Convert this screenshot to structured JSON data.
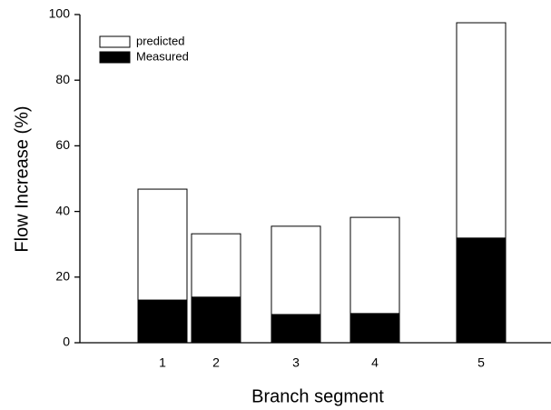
{
  "chart_data": {
    "type": "bar",
    "xlabel": "Branch segment",
    "ylabel": "Flow Increase (%)",
    "categories": [
      "1",
      "2",
      "3",
      "4",
      "5"
    ],
    "series": [
      {
        "name": "predicted",
        "color": "#ffffff",
        "values": [
          46.8,
          33.2,
          35.5,
          38.2,
          97.5
        ]
      },
      {
        "name": "Measured",
        "color": "#000000",
        "values": [
          13.0,
          13.9,
          8.6,
          8.9,
          31.9
        ]
      }
    ],
    "ylim": [
      0,
      100
    ],
    "yticks": [
      0,
      20,
      40,
      60,
      80,
      100
    ],
    "legend": "upper-left",
    "grid": false
  }
}
